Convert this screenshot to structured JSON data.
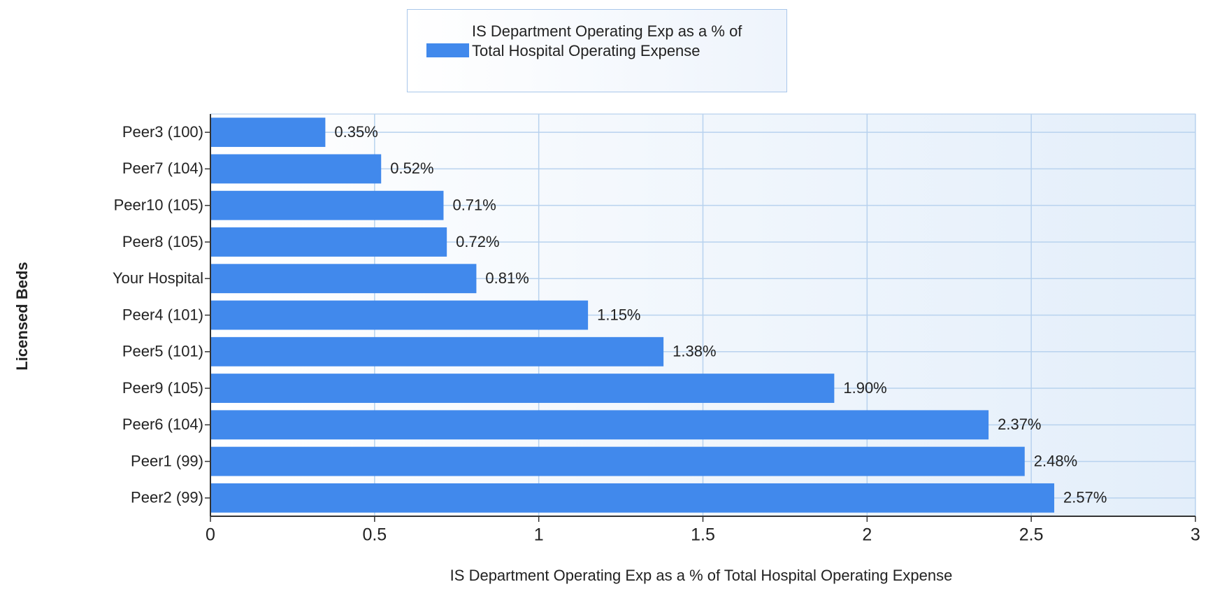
{
  "chart_data": {
    "type": "bar",
    "orientation": "horizontal",
    "y_label": "Licensed Beds",
    "x_label": "IS Department Operating Exp as a % of Total Hospital Operating Expense",
    "categories": [
      "Peer3 (100)",
      "Peer7 (104)",
      "Peer10 (105)",
      "Peer8 (105)",
      "Your Hospital",
      "Peer4 (101)",
      "Peer5 (101)",
      "Peer9 (105)",
      "Peer6 (104)",
      "Peer1 (99)",
      "Peer2 (99)"
    ],
    "series": [
      {
        "name": "IS Department Operating Exp as a % of Total Hospital Operating Expense",
        "color": "#4189ec",
        "values": [
          0.35,
          0.52,
          0.71,
          0.72,
          0.81,
          1.15,
          1.38,
          1.9,
          2.37,
          2.48,
          2.57
        ],
        "value_labels": [
          "0.35%",
          "0.52%",
          "0.71%",
          "0.72%",
          "0.81%",
          "1.15%",
          "1.38%",
          "1.90%",
          "2.37%",
          "2.48%",
          "2.57%"
        ]
      }
    ],
    "xlim": [
      0,
      3
    ],
    "xticks": [
      0,
      0.5,
      1,
      1.5,
      2,
      2.5,
      3
    ],
    "grid": true,
    "legend": "top"
  }
}
